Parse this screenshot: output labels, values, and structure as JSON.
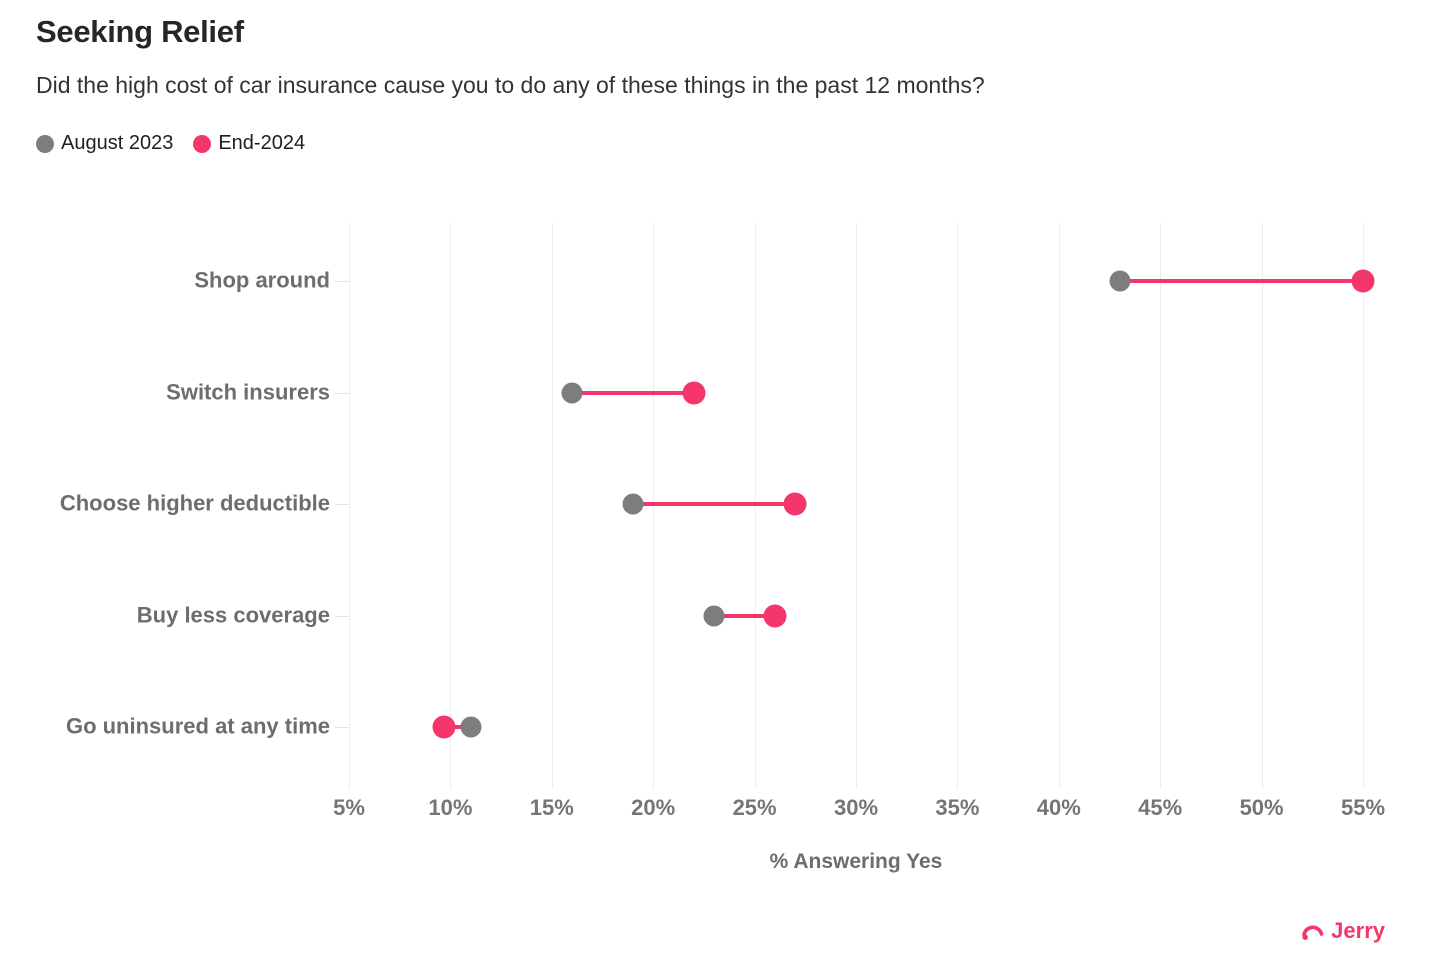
{
  "header": {
    "title": "Seeking Relief",
    "subtitle": "Did the high cost of car insurance cause you to do any of these things in the past 12 months?"
  },
  "legend": [
    {
      "label": "August 2023",
      "color": "#7d7d7d"
    },
    {
      "label": "End-2024",
      "color": "#f4366b"
    }
  ],
  "chart_data": {
    "type": "dumbbell",
    "categories": [
      "Shop around",
      "Switch insurers",
      "Choose higher deductible",
      "Buy less coverage",
      "Go uninsured at any time"
    ],
    "series": [
      {
        "name": "August 2023",
        "color": "#7d7d7d",
        "values": [
          43,
          16,
          19,
          23,
          11
        ]
      },
      {
        "name": "End-2024",
        "color": "#f4366b",
        "values": [
          55,
          22,
          27,
          26,
          9.7
        ]
      }
    ],
    "xlabel": "% Answering Yes",
    "x_ticks": [
      "5%",
      "10%",
      "15%",
      "20%",
      "25%",
      "30%",
      "35%",
      "40%",
      "45%",
      "50%",
      "55%"
    ],
    "x_tick_values": [
      5,
      10,
      15,
      20,
      25,
      30,
      35,
      40,
      45,
      50,
      55
    ],
    "xlim": [
      5,
      55
    ],
    "grid": "vertical-only",
    "legend_position": "top-left",
    "connector_color": "#f4366b"
  },
  "footer": {
    "brand": "Jerry"
  },
  "colors": {
    "accent_pink": "#f4366b",
    "neutral_gray": "#7d7d7d",
    "gridline": "#ededed",
    "label_gray": "#6d6d6d",
    "tick_gray": "#757575",
    "title_dark": "#262626"
  }
}
